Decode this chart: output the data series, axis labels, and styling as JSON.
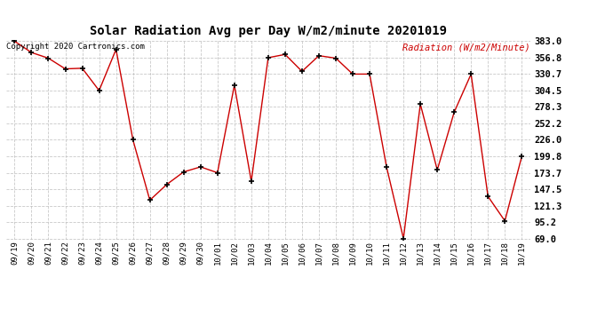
{
  "title": "Solar Radiation Avg per Day W/m2/minute 20201019",
  "copyright_text": "Copyright 2020 Cartronics.com",
  "legend_label": "Radiation (W/m2/Minute)",
  "dates": [
    "09/19",
    "09/20",
    "09/21",
    "09/22",
    "09/23",
    "09/24",
    "09/25",
    "09/26",
    "09/27",
    "09/28",
    "09/29",
    "09/30",
    "10/01",
    "10/02",
    "10/03",
    "10/04",
    "10/05",
    "10/06",
    "10/07",
    "10/08",
    "10/09",
    "10/10",
    "10/11",
    "10/12",
    "10/13",
    "10/14",
    "10/15",
    "10/16",
    "10/17",
    "10/18",
    "10/19"
  ],
  "values": [
    383.0,
    365.0,
    356.0,
    339.0,
    340.0,
    304.5,
    370.0,
    226.0,
    130.0,
    155.0,
    175.0,
    183.0,
    173.7,
    313.0,
    160.0,
    356.8,
    362.0,
    335.0,
    360.0,
    356.0,
    330.7,
    330.7,
    183.0,
    69.0,
    283.0,
    178.0,
    270.0,
    330.7,
    136.0,
    97.0,
    199.8
  ],
  "line_color": "#cc0000",
  "marker_color": "#000000",
  "background_color": "#ffffff",
  "grid_color": "#bbbbbb",
  "title_color": "#000000",
  "copyright_color": "#000000",
  "legend_color": "#cc0000",
  "ymin": 69.0,
  "ymax": 383.0,
  "yticks": [
    69.0,
    95.2,
    121.3,
    147.5,
    173.7,
    199.8,
    226.0,
    252.2,
    278.3,
    304.5,
    330.7,
    356.8,
    383.0
  ],
  "ytick_labels": [
    "69.0",
    "95.2",
    "121.3",
    "147.5",
    "173.7",
    "199.8",
    "226.0",
    "252.2",
    "278.3",
    "304.5",
    "330.7",
    "356.8",
    "383.0"
  ]
}
